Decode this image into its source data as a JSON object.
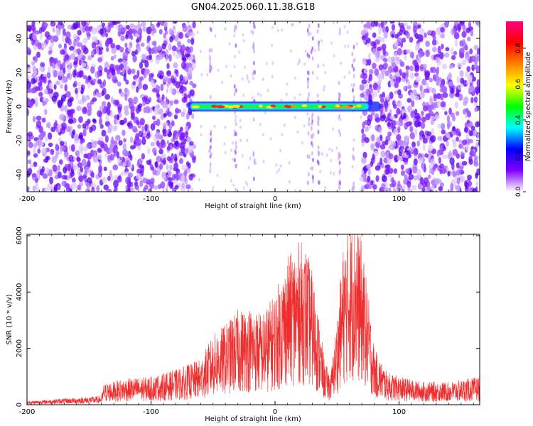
{
  "title": "GN04.2025.060.11.38.G18",
  "colors": {
    "noise": "#6a00ff",
    "trace": "#ee2e2e",
    "axis": "#000000",
    "background": "#ffffff"
  },
  "chart_data": [
    {
      "type": "heatmap",
      "xlabel": "Height of straight line (km)",
      "ylabel": "Frequency (Hz)",
      "xlim": [
        -200,
        165
      ],
      "ylim": [
        -50,
        50
      ],
      "xticks": [
        -200,
        -100,
        0,
        100
      ],
      "yticks": [
        -40,
        -20,
        0,
        20,
        40
      ],
      "grid": false,
      "noise_regions_km": [
        [
          -200,
          -65
        ],
        [
          70,
          165
        ]
      ],
      "sparse_region_km": [
        -65,
        70
      ],
      "signal_band": {
        "x_start": -70,
        "x_end": 85,
        "frequency_hz": 0
      },
      "vertical_streaks_km": [
        -87,
        -52,
        -32,
        -17,
        27,
        30,
        35,
        52,
        63
      ],
      "colorbar": {
        "label": "Normalized spectral amplitude",
        "range": [
          0,
          0.95
        ],
        "ticks": [
          0.0,
          0.2,
          0.4,
          0.6,
          0.8
        ],
        "tick_labels": [
          "0.0",
          "0.2",
          "0.4",
          "0.6",
          "0.8"
        ],
        "colormap": [
          "#ffffff",
          "#8000ff",
          "#0000ff",
          "#00ffff",
          "#00ff00",
          "#ffff00",
          "#ff8000",
          "#ff0000",
          "#ff0080"
        ]
      }
    },
    {
      "type": "line",
      "xlabel": "Height of straight line (km)",
      "ylabel": "SNR (10 * v/v)",
      "xlim": [
        -200,
        165
      ],
      "ylim": [
        0,
        6050
      ],
      "xticks": [
        -200,
        -100,
        0,
        100
      ],
      "yticks": [
        0,
        2000,
        4000,
        6000
      ],
      "grid": false,
      "series": [
        {
          "x": [
            -200,
            -170,
            -140,
            -138,
            -120,
            -100,
            -80,
            -60,
            -50,
            -40,
            -30,
            -20,
            -10,
            0,
            10,
            20,
            25,
            30,
            35,
            40,
            45,
            50,
            55,
            60,
            65,
            70,
            75,
            80,
            90,
            100,
            120,
            140,
            165
          ],
          "y": [
            100,
            180,
            250,
            600,
            750,
            800,
            1000,
            1300,
            2000,
            2300,
            2700,
            2800,
            2600,
            3200,
            4200,
            4700,
            4500,
            3800,
            2600,
            1200,
            900,
            2500,
            4500,
            5300,
            5400,
            4600,
            3200,
            1600,
            950,
            800,
            650,
            650,
            800
          ]
        }
      ]
    }
  ]
}
